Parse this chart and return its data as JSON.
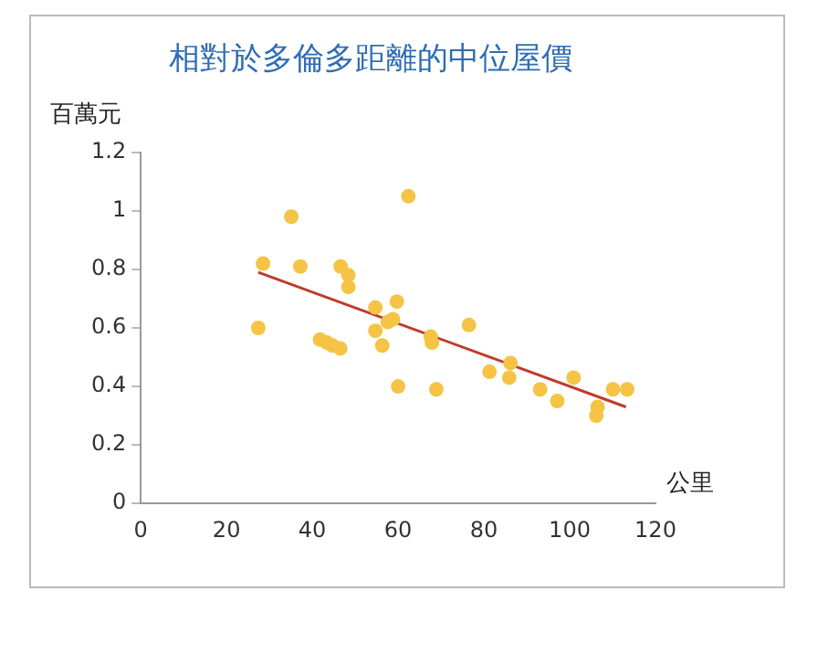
{
  "chart_data": {
    "type": "scatter",
    "title": "相對於多倫多距離的中位屋價",
    "xlabel": "公里",
    "ylabel": "百萬元",
    "xlim": [
      0,
      120
    ],
    "xticks": [
      0,
      20,
      40,
      60,
      80,
      100,
      120
    ],
    "ylim": [
      0,
      1.2
    ],
    "yticks": [
      0,
      0.2,
      0.4,
      0.6,
      0.8,
      1,
      1.2
    ],
    "grid": false,
    "legend": false,
    "marker": "circle",
    "series": [
      {
        "color": "#f5c445",
        "x": [
          27.4,
          28.5,
          35.1,
          37.2,
          41.8,
          43.4,
          44.7,
          46.5,
          46.6,
          48.4,
          48.4,
          54.7,
          54.7,
          56.3,
          59.7,
          58.8,
          57.6,
          60.0,
          62.4,
          67.6,
          67.9,
          68.9,
          76.5,
          81.3,
          86.2,
          85.9,
          93.1,
          97.1,
          100.9,
          106.5,
          106.2,
          110.1,
          113.4
        ],
        "values": [
          0.6,
          0.82,
          0.98,
          0.81,
          0.56,
          0.55,
          0.54,
          0.53,
          0.81,
          0.78,
          0.74,
          0.67,
          0.59,
          0.54,
          0.69,
          0.63,
          0.62,
          0.4,
          1.05,
          0.57,
          0.55,
          0.39,
          0.61,
          0.45,
          0.48,
          0.43,
          0.39,
          0.35,
          0.43,
          0.33,
          0.3,
          0.39,
          0.39
        ]
      },
      {
        "type": "line",
        "color": "#c0392b",
        "marker": "none",
        "x": [
          27.4,
          113.1
        ],
        "values": [
          0.79,
          0.33
        ]
      }
    ]
  }
}
